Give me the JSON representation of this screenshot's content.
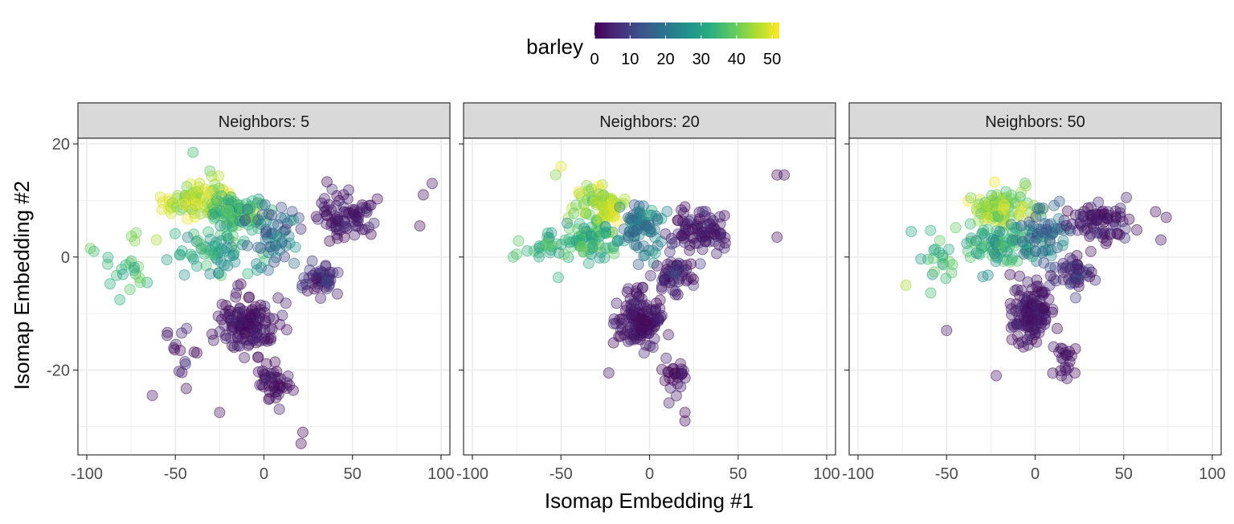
{
  "legend": {
    "title": "barley",
    "ticks": [
      "0",
      "10",
      "20",
      "30",
      "40",
      "50"
    ],
    "tick_values": [
      0,
      10,
      20,
      30,
      40,
      50
    ],
    "range": [
      0,
      52
    ],
    "colors": [
      "#440154",
      "#472d7b",
      "#3b528b",
      "#2c728e",
      "#21918c",
      "#28ae80",
      "#5ec962",
      "#addc30",
      "#fde725"
    ],
    "placement": "top"
  },
  "axes": {
    "xlabel": "Isomap Embedding #1",
    "ylabel": "Isomap Embedding #2",
    "x_ticks": [
      "-100",
      "-50",
      "0",
      "50",
      "100"
    ],
    "y_ticks": [
      "20",
      "0",
      "-20"
    ]
  },
  "chart_data": {
    "type": "scatter",
    "xlim": [
      -105,
      105
    ],
    "ylim": [
      -35,
      21
    ],
    "x_tick_values": [
      -100,
      -50,
      0,
      50,
      100
    ],
    "y_tick_values": [
      20,
      0,
      -20
    ],
    "grid": true,
    "point_opacity": 0.35,
    "color_variable": "barley",
    "facets": [
      {
        "label": "Neighbors: 5",
        "clusters": [
          {
            "cx": -35,
            "cy": 10,
            "sx": 18,
            "sy": 3,
            "n": 90,
            "b": [
              38,
              52
            ]
          },
          {
            "cx": -15,
            "cy": 8,
            "sx": 14,
            "sy": 3.5,
            "n": 80,
            "b": [
              25,
              42
            ]
          },
          {
            "cx": -28,
            "cy": 1,
            "sx": 18,
            "sy": 3,
            "n": 60,
            "b": [
              22,
              38
            ]
          },
          {
            "cx": -75,
            "cy": -2,
            "sx": 14,
            "sy": 4,
            "n": 22,
            "b": [
              28,
              45
            ]
          },
          {
            "cx": 8,
            "cy": 4,
            "sx": 10,
            "sy": 5,
            "n": 55,
            "b": [
              8,
              28
            ]
          },
          {
            "cx": 45,
            "cy": 7,
            "sx": 16,
            "sy": 3,
            "n": 75,
            "b": [
              0,
              8
            ]
          },
          {
            "cx": 32,
            "cy": -4,
            "sx": 10,
            "sy": 2,
            "n": 45,
            "b": [
              0,
              12
            ]
          },
          {
            "cx": -10,
            "cy": -12,
            "sx": 12,
            "sy": 4,
            "n": 130,
            "b": [
              0,
              6
            ]
          },
          {
            "cx": 5,
            "cy": -22,
            "sx": 9,
            "sy": 3,
            "n": 40,
            "b": [
              0,
              5
            ]
          },
          {
            "cx": -45,
            "cy": -17,
            "sx": 10,
            "sy": 5,
            "n": 15,
            "b": [
              0,
              8
            ]
          }
        ],
        "extra_points": [
          {
            "x": -98,
            "y": 1.5,
            "b": 40
          },
          {
            "x": -96,
            "y": 1,
            "b": 35
          },
          {
            "x": 90,
            "y": 11,
            "b": 2
          },
          {
            "x": 95,
            "y": 13,
            "b": 3
          },
          {
            "x": 88,
            "y": 5.5,
            "b": 1
          },
          {
            "x": 22,
            "y": -31,
            "b": 1
          },
          {
            "x": 21,
            "y": -33,
            "b": 1
          },
          {
            "x": -63,
            "y": -24.5,
            "b": 3
          },
          {
            "x": -40,
            "y": 18.5,
            "b": 35
          },
          {
            "x": -25,
            "y": -27.5,
            "b": 2
          }
        ]
      },
      {
        "label": "Neighbors: 20",
        "clusters": [
          {
            "cx": -28,
            "cy": 9,
            "sx": 12,
            "sy": 3,
            "n": 85,
            "b": [
              35,
              52
            ]
          },
          {
            "cx": -35,
            "cy": 3,
            "sx": 16,
            "sy": 3,
            "n": 70,
            "b": [
              25,
              42
            ]
          },
          {
            "cx": -5,
            "cy": 5,
            "sx": 12,
            "sy": 4,
            "n": 75,
            "b": [
              12,
              32
            ]
          },
          {
            "cx": 28,
            "cy": 5,
            "sx": 15,
            "sy": 3,
            "n": 80,
            "b": [
              0,
              8
            ]
          },
          {
            "cx": 15,
            "cy": -3,
            "sx": 10,
            "sy": 3,
            "n": 50,
            "b": [
              0,
              12
            ]
          },
          {
            "cx": -5,
            "cy": -11,
            "sx": 11,
            "sy": 4,
            "n": 130,
            "b": [
              0,
              6
            ]
          },
          {
            "cx": 15,
            "cy": -21,
            "sx": 6,
            "sy": 3,
            "n": 25,
            "b": [
              0,
              5
            ]
          },
          {
            "cx": -60,
            "cy": 1,
            "sx": 10,
            "sy": 3,
            "n": 20,
            "b": [
              25,
              40
            ]
          }
        ],
        "extra_points": [
          {
            "x": -75,
            "y": 0.5,
            "b": 38
          },
          {
            "x": -77,
            "y": 0,
            "b": 36
          },
          {
            "x": 72,
            "y": 14.5,
            "b": 2
          },
          {
            "x": 76,
            "y": 14.5,
            "b": 2
          },
          {
            "x": 72,
            "y": 3.5,
            "b": 2
          },
          {
            "x": 20,
            "y": -29,
            "b": 1
          },
          {
            "x": 20,
            "y": -27.5,
            "b": 1
          },
          {
            "x": -23,
            "y": -20.5,
            "b": 3
          },
          {
            "x": -50,
            "y": 16,
            "b": 50
          },
          {
            "x": -53,
            "y": 14.5,
            "b": 42
          }
        ]
      },
      {
        "label": "Neighbors: 50",
        "clusters": [
          {
            "cx": -20,
            "cy": 8.5,
            "sx": 14,
            "sy": 3,
            "n": 85,
            "b": [
              35,
              52
            ]
          },
          {
            "cx": -20,
            "cy": 2,
            "sx": 18,
            "sy": 3,
            "n": 80,
            "b": [
              22,
              40
            ]
          },
          {
            "cx": 5,
            "cy": 4,
            "sx": 10,
            "sy": 4,
            "n": 60,
            "b": [
              10,
              30
            ]
          },
          {
            "cx": 35,
            "cy": 6,
            "sx": 15,
            "sy": 3,
            "n": 75,
            "b": [
              0,
              8
            ]
          },
          {
            "cx": 22,
            "cy": -3,
            "sx": 9,
            "sy": 3,
            "n": 45,
            "b": [
              0,
              12
            ]
          },
          {
            "cx": -2,
            "cy": -10,
            "sx": 10,
            "sy": 4,
            "n": 130,
            "b": [
              0,
              6
            ]
          },
          {
            "cx": 15,
            "cy": -18,
            "sx": 7,
            "sy": 2.5,
            "n": 20,
            "b": [
              0,
              5
            ]
          },
          {
            "cx": -55,
            "cy": 0,
            "sx": 10,
            "sy": 4,
            "n": 20,
            "b": [
              25,
              40
            ]
          }
        ],
        "extra_points": [
          {
            "x": -73,
            "y": -5,
            "b": 45
          },
          {
            "x": -70,
            "y": 4.5,
            "b": 30
          },
          {
            "x": 74,
            "y": 7,
            "b": 2
          },
          {
            "x": 71,
            "y": 3,
            "b": 2
          },
          {
            "x": 68,
            "y": 8,
            "b": 2
          },
          {
            "x": -22,
            "y": -21,
            "b": 3
          },
          {
            "x": 18,
            "y": -21.5,
            "b": 2
          },
          {
            "x": -50,
            "y": -13,
            "b": 3
          }
        ]
      }
    ]
  }
}
